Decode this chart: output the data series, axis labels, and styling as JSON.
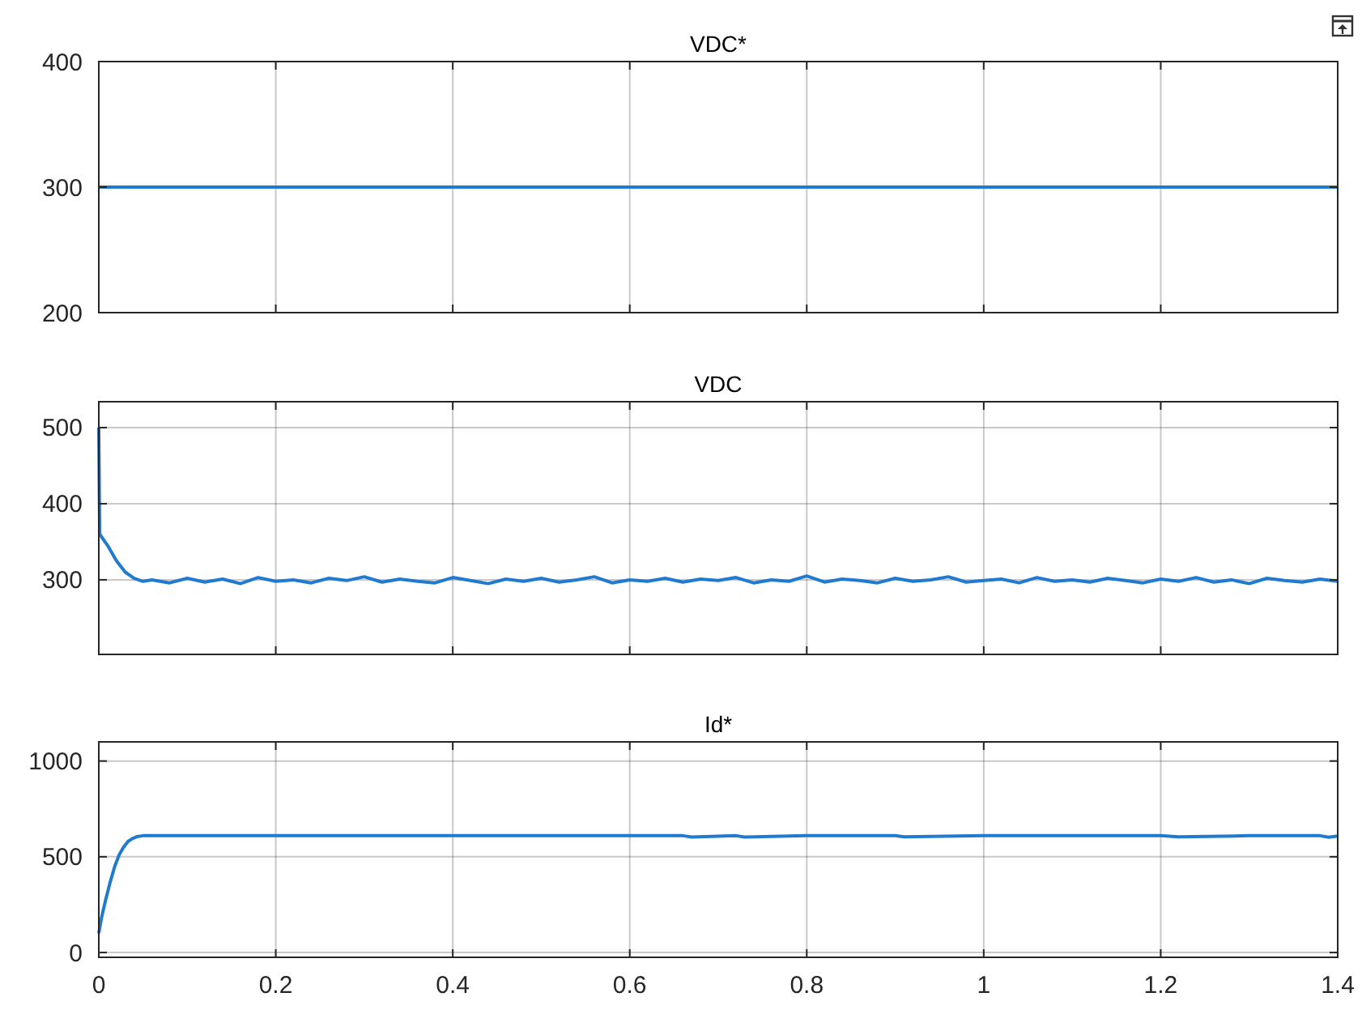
{
  "chart_data": [
    {
      "type": "line",
      "title": "VDC*",
      "x": [
        0,
        0.2,
        0.4,
        0.6,
        0.8,
        1,
        1.2,
        1.4
      ],
      "series": [
        {
          "color": "#1f7ad0",
          "values": [
            300,
            300,
            300,
            300,
            300,
            300,
            300,
            300
          ]
        }
      ],
      "xlim": [
        0,
        1.4
      ],
      "xticks": [
        0,
        0.2,
        0.4,
        0.6,
        0.8,
        1,
        1.2,
        1.4
      ],
      "ylim": [
        200,
        400
      ],
      "yticks": [
        200,
        300,
        400
      ],
      "grid": true,
      "tick_labels": "y"
    },
    {
      "type": "line",
      "title": "VDC",
      "x": [
        0,
        0.001,
        0.01,
        0.02,
        0.03,
        0.04,
        0.05,
        0.06,
        0.08,
        0.1,
        0.12,
        0.14,
        0.16,
        0.18,
        0.2,
        0.22,
        0.24,
        0.26,
        0.28,
        0.3,
        0.32,
        0.34,
        0.36,
        0.38,
        0.4,
        0.42,
        0.44,
        0.46,
        0.48,
        0.5,
        0.52,
        0.54,
        0.56,
        0.58,
        0.6,
        0.62,
        0.64,
        0.66,
        0.68,
        0.7,
        0.72,
        0.74,
        0.76,
        0.78,
        0.8,
        0.82,
        0.84,
        0.86,
        0.88,
        0.9,
        0.92,
        0.94,
        0.96,
        0.98,
        1,
        1.02,
        1.04,
        1.06,
        1.08,
        1.1,
        1.12,
        1.14,
        1.16,
        1.18,
        1.2,
        1.22,
        1.24,
        1.26,
        1.28,
        1.3,
        1.32,
        1.34,
        1.36,
        1.38,
        1.4
      ],
      "series": [
        {
          "color": "#1f7ad0",
          "values": [
            500,
            360,
            345,
            325,
            310,
            302,
            298,
            300,
            296,
            302,
            297,
            301,
            295,
            303,
            298,
            300,
            296,
            302,
            299,
            304,
            297,
            301,
            298,
            296,
            303,
            299,
            295,
            301,
            298,
            302,
            297,
            300,
            304,
            296,
            300,
            298,
            302,
            297,
            301,
            299,
            303,
            296,
            300,
            298,
            305,
            297,
            301,
            299,
            296,
            302,
            298,
            300,
            304,
            297,
            299,
            301,
            296,
            303,
            298,
            300,
            297,
            302,
            299,
            296,
            301,
            298,
            303,
            297,
            300,
            295,
            302,
            299,
            297,
            301,
            298
          ]
        }
      ],
      "xlim": [
        0,
        1.4
      ],
      "xticks": [
        0,
        0.2,
        0.4,
        0.6,
        0.8,
        1,
        1.2,
        1.4
      ],
      "ylim": [
        202,
        534
      ],
      "yticks": [
        300,
        400,
        500
      ],
      "grid": true,
      "tick_labels": "y"
    },
    {
      "type": "line",
      "title": "Id*",
      "x": [
        0,
        0.003,
        0.008,
        0.013,
        0.018,
        0.023,
        0.028,
        0.033,
        0.038,
        0.043,
        0.05,
        0.2,
        0.4,
        0.6,
        0.66,
        0.67,
        0.72,
        0.73,
        0.8,
        0.9,
        0.91,
        1,
        1.2,
        1.22,
        1.3,
        1.38,
        1.39,
        1.4
      ],
      "series": [
        {
          "color": "#1f7ad0",
          "values": [
            100,
            180,
            280,
            370,
            450,
            510,
            550,
            580,
            595,
            605,
            610,
            610,
            610,
            610,
            610,
            603,
            610,
            603,
            610,
            610,
            604,
            610,
            610,
            604,
            610,
            610,
            602,
            608
          ]
        }
      ],
      "xlim": [
        0,
        1.4
      ],
      "xticks": [
        0,
        0.2,
        0.4,
        0.6,
        0.8,
        1,
        1.2,
        1.4
      ],
      "ylim": [
        -25,
        1100
      ],
      "yticks": [
        0,
        500,
        1000
      ],
      "grid": true
    }
  ]
}
